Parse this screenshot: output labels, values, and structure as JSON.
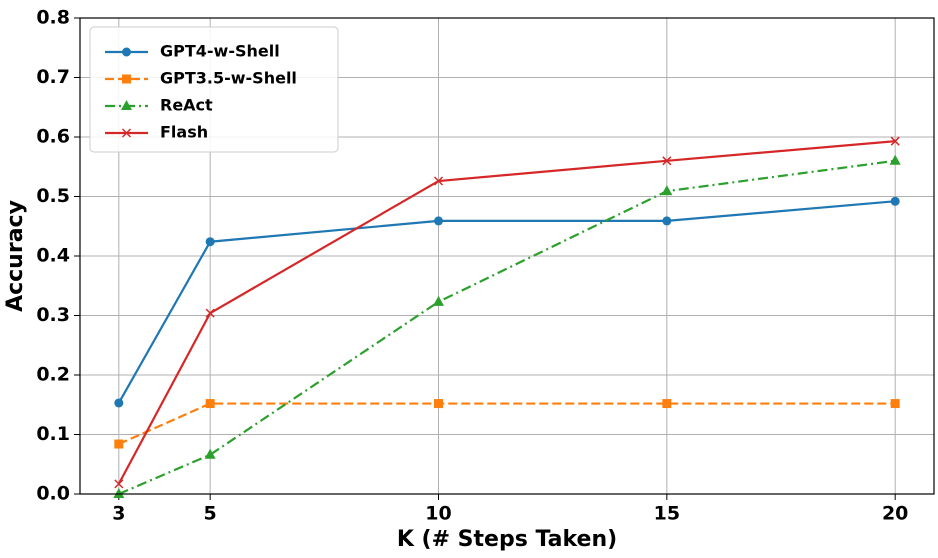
{
  "chart_data": {
    "type": "line",
    "x_label": "K (# Steps Taken)",
    "y_label": "Accuracy",
    "x": [
      3,
      5,
      10,
      15,
      20
    ],
    "series": [
      {
        "name": "GPT4-w-Shell",
        "color": "#1f77b4",
        "linestyle": "solid",
        "marker": "circle",
        "values": [
          0.153,
          0.424,
          0.459,
          0.459,
          0.492
        ]
      },
      {
        "name": "GPT3.5-w-Shell",
        "color": "#ff7f0e",
        "linestyle": "dashed",
        "marker": "square",
        "values": [
          0.084,
          0.152,
          0.152,
          0.152,
          0.152
        ]
      },
      {
        "name": "ReAct",
        "color": "#2ca02c",
        "linestyle": "dashdot",
        "marker": "triangle",
        "values": [
          0.0,
          0.066,
          0.323,
          0.509,
          0.56
        ]
      },
      {
        "name": "Flash",
        "color": "#d62728",
        "linestyle": "solid",
        "marker": "x",
        "values": [
          0.017,
          0.304,
          0.526,
          0.56,
          0.593
        ]
      }
    ],
    "xlim": [
      2.15,
      20.85
    ],
    "ylim": [
      0,
      0.8
    ],
    "xticks": [
      3,
      5,
      10,
      15,
      20
    ],
    "yticks": [
      {
        "value": 0,
        "label": "0.0"
      },
      0.1,
      0.2,
      0.3,
      0.4,
      0.5,
      0.6,
      0.7,
      0.8
    ],
    "grid": true,
    "legend": "upper-left"
  }
}
